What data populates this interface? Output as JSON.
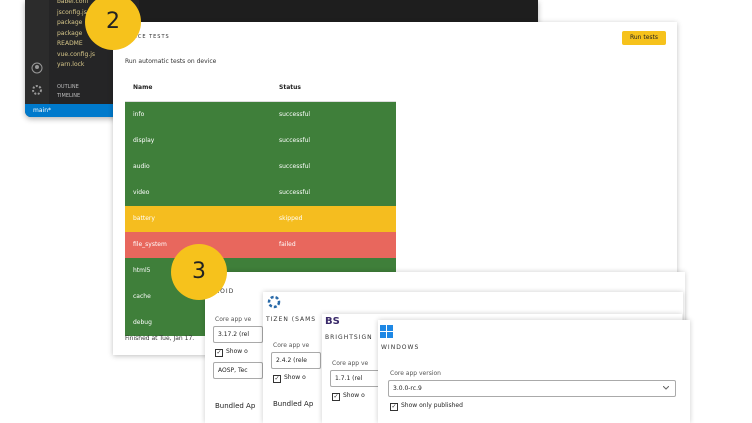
{
  "editor": {
    "files": [
      "babel.conf",
      "jsconfig.json",
      "package",
      "package",
      "README",
      "vue.config.js",
      "yarn.lock"
    ],
    "sections": [
      "OUTLINE",
      "TIMELINE"
    ],
    "branch": "main*"
  },
  "badges": [
    "2",
    "3"
  ],
  "tests": {
    "title": "TANCE TESTS",
    "button": "Run tests",
    "subtitle": "Run automatic tests on device",
    "table": {
      "header": [
        "Name",
        "Status"
      ],
      "rows": [
        {
          "name": "info",
          "status": "successful",
          "color": "#3f7f3a"
        },
        {
          "name": "display",
          "status": "successful",
          "color": "#3f7f3a"
        },
        {
          "name": "audio",
          "status": "successful",
          "color": "#3f7f3a"
        },
        {
          "name": "video",
          "status": "successful",
          "color": "#3f7f3a"
        },
        {
          "name": "battery",
          "status": "skipped",
          "color": "#f5bd1f"
        },
        {
          "name": "file_system",
          "status": "failed",
          "color": "#e8675d"
        },
        {
          "name": "html5",
          "status": "",
          "color": "#3f7f3a"
        },
        {
          "name": "cache",
          "status": "",
          "color": "#3f7f3a"
        },
        {
          "name": "debug",
          "status": "",
          "color": "#3f7f3a"
        }
      ]
    },
    "footer": "Finished at Tue, Jan 17."
  },
  "platforms": [
    {
      "name": "ROID",
      "field": "Core app ve",
      "version": "3.17.2 (rel",
      "checkbox": "Show o",
      "extra": "AOSP, Tec",
      "section": "Bundled Ap"
    },
    {
      "name": "TIZEN (SAMS",
      "field": "Core app ve",
      "version": "2.4.2 (rele",
      "checkbox": "Show o",
      "section": "Bundled Ap"
    },
    {
      "logo": "BS",
      "name": "BRIGHTSIGN",
      "field": "Core app ve",
      "version": "1.7.1 (rel",
      "checkbox": "Show o"
    },
    {
      "name": "WINDOWS",
      "field": "Core app version",
      "version": "3.0.0-rc.9",
      "checkbox": "Show only published"
    }
  ]
}
